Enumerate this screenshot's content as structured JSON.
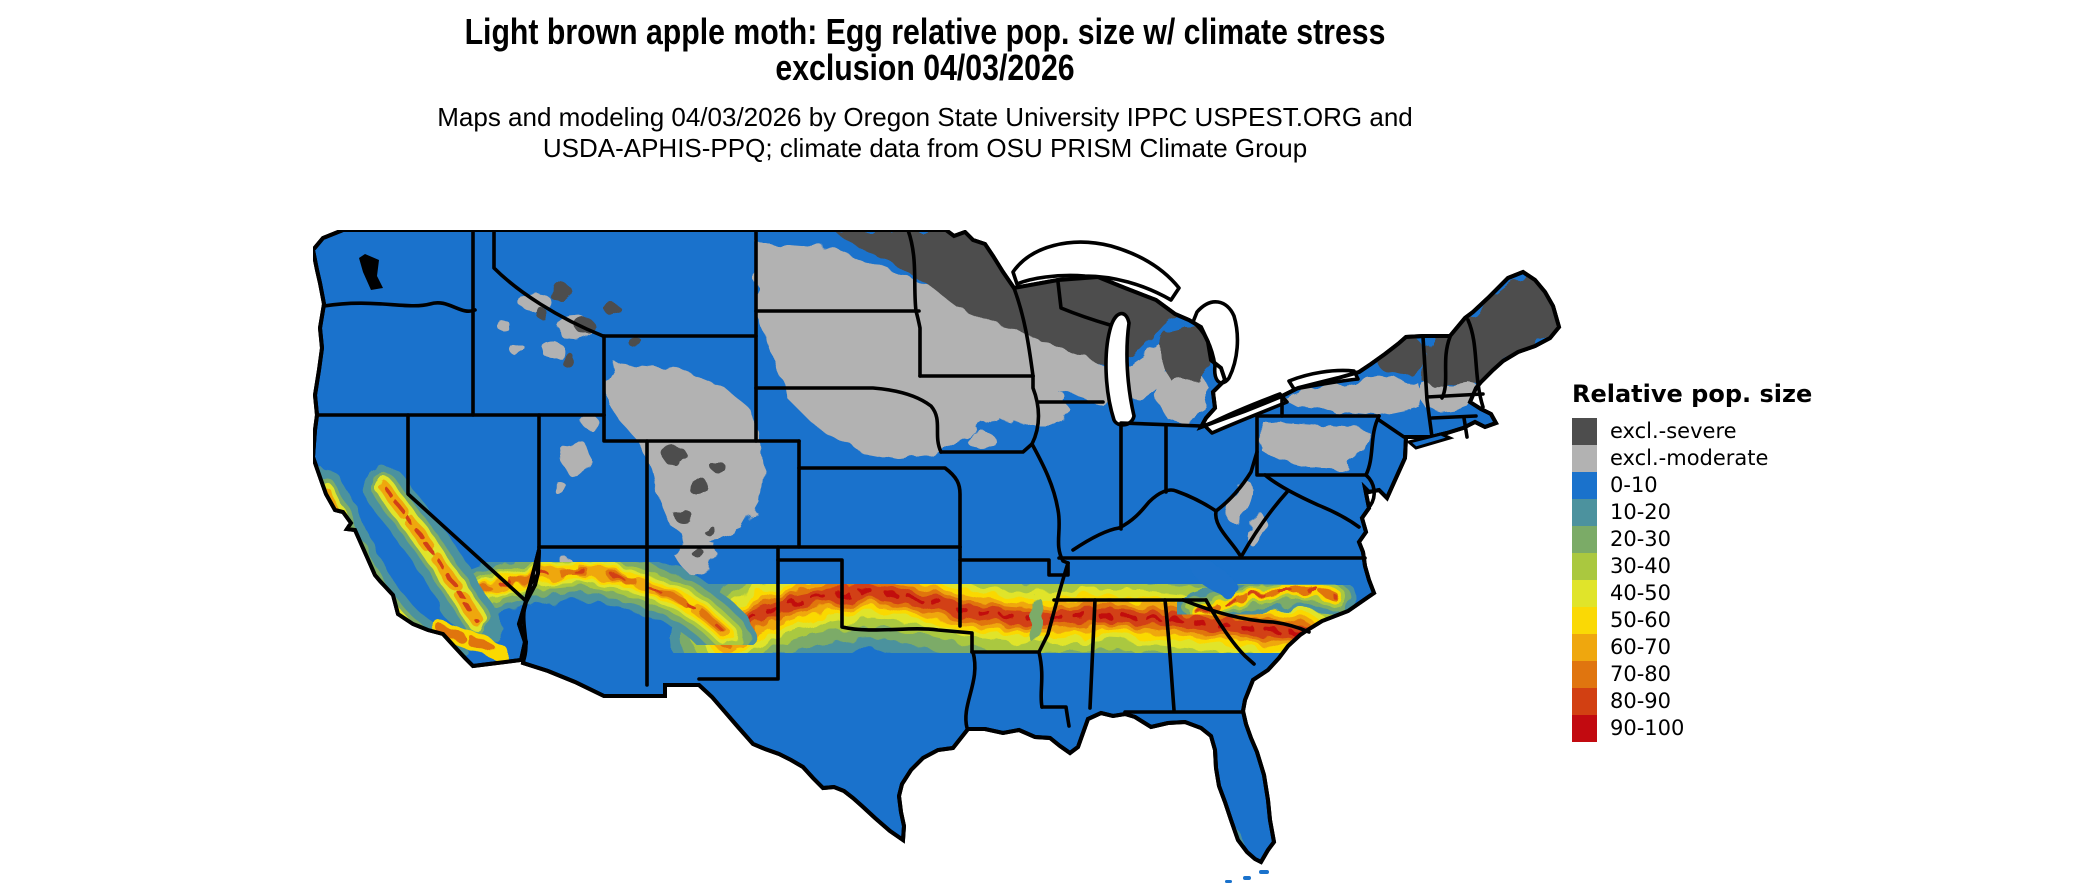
{
  "title": {
    "line1": "Light brown apple moth: Egg relative pop. size w/ climate stress",
    "line2": "exclusion 04/03/2026"
  },
  "subtitle": {
    "line1": "Maps and modeling 04/03/2026 by Oregon State University IPPC USPEST.ORG and",
    "line2": "USDA-APHIS-PPQ; climate data from OSU PRISM Climate Group"
  },
  "map": {
    "region": "Contiguous United States",
    "type": "raster choropleth of relative population size with climate stress exclusion",
    "base_color": "#1a72cc",
    "border_color": "#000000",
    "background_color": "#ffffff"
  },
  "legend": {
    "title": "Relative pop. size",
    "items": [
      {
        "label": "excl.-severe",
        "color": "#4d4d4d"
      },
      {
        "label": "excl.-moderate",
        "color": "#b2b2b2"
      },
      {
        "label": "0-10",
        "color": "#1a72cc"
      },
      {
        "label": "10-20",
        "color": "#4c929e"
      },
      {
        "label": "20-30",
        "color": "#7bab67"
      },
      {
        "label": "30-40",
        "color": "#aac83f"
      },
      {
        "label": "40-50",
        "color": "#e0e42a"
      },
      {
        "label": "50-60",
        "color": "#fad905"
      },
      {
        "label": "60-70",
        "color": "#efa70e"
      },
      {
        "label": "70-80",
        "color": "#e0750f"
      },
      {
        "label": "80-90",
        "color": "#d24012"
      },
      {
        "label": "90-100",
        "color": "#c20a10"
      }
    ]
  }
}
